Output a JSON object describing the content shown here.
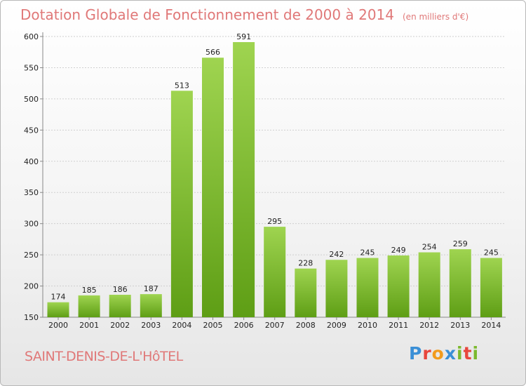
{
  "title": "Dotation Globale de Fonctionnement de 2000 à 2014",
  "title_unit": "(en milliers d'€)",
  "commune": "SAINT-DENIS-DE-L'HôTEL",
  "logo": {
    "letters": [
      "P",
      "r",
      "o",
      "x",
      "i",
      "t",
      "i"
    ],
    "colors": [
      "#3a8fd6",
      "#e8463c",
      "#f29b1d",
      "#3a8fd6",
      "#7cb92e",
      "#e8463c",
      "#7cb92e"
    ]
  },
  "colors": {
    "bar_light": "#9fd450",
    "bar_dark": "#5e9e15",
    "grid": "#cfcfcf",
    "axis": "#888888"
  },
  "chart_data": {
    "type": "bar",
    "categories": [
      "2000",
      "2001",
      "2002",
      "2003",
      "2004",
      "2005",
      "2006",
      "2007",
      "2008",
      "2009",
      "2010",
      "2011",
      "2012",
      "2013",
      "2014"
    ],
    "values": [
      174,
      185,
      186,
      187,
      513,
      566,
      591,
      295,
      228,
      242,
      245,
      249,
      254,
      259,
      245
    ],
    "ylim": [
      150,
      600
    ],
    "yticks": [
      150,
      200,
      250,
      300,
      350,
      400,
      450,
      500,
      550,
      600
    ],
    "grid": true,
    "data_labels": true
  }
}
